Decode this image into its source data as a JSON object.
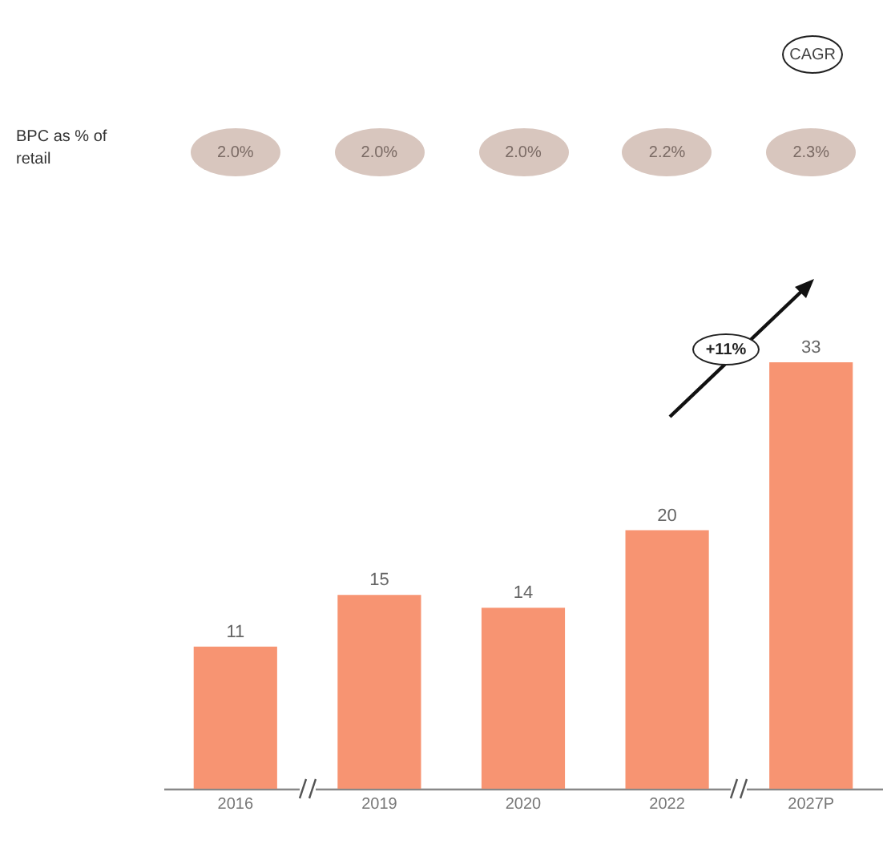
{
  "chart_data": {
    "type": "bar",
    "categories": [
      "2016",
      "2019",
      "2020",
      "2022",
      "2027P"
    ],
    "values": [
      11,
      15,
      14,
      20,
      33
    ],
    "color": "#f79472",
    "data_labels": true,
    "annotations": [
      "BPC as % of retail",
      "CAGR",
      "+11%",
      "2.0%",
      "2.0%",
      "2.0%",
      "2.2%",
      "2.3%"
    ]
  }
}
